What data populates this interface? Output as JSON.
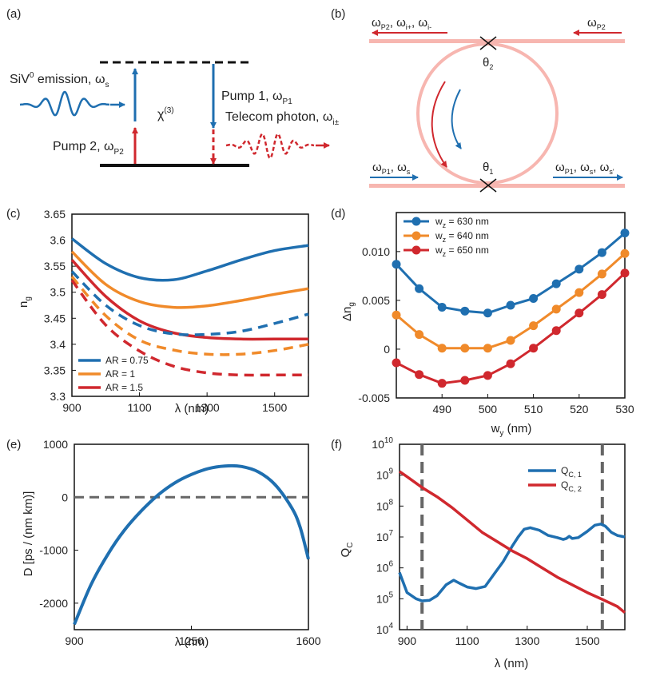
{
  "colors": {
    "blue": "#1f6fb0",
    "orange": "#f08a2a",
    "red": "#d0282e",
    "pink": "#f7b6b0",
    "black": "#111111",
    "grey": "#666666"
  },
  "panel_a": {
    "label": "(a)",
    "siv_emission": "SiV",
    "siv_sup": "0",
    "siv_rest": " emission, ω",
    "siv_sub": "s",
    "chi": "χ",
    "chi_sup": "(3)",
    "pump1": "Pump 1, ω",
    "pump1_sub": "P1",
    "telecom": "Telecom photon, ω",
    "telecom_sub": "i±",
    "pump2": "Pump 2, ω",
    "pump2_sub": "P2"
  },
  "panel_b": {
    "label": "(b)",
    "out_top_left": "ω",
    "out_top_left_sub": "P2",
    "out_top_left_2": ", ω",
    "out_top_left_2_sub": "i+",
    "out_top_left_3": ", ω",
    "out_top_left_3_sub": "i-",
    "in_top_right": "ω",
    "in_top_right_sub": "P2",
    "theta2": "θ",
    "theta2_sub": "2",
    "theta1": "θ",
    "theta1_sub": "1",
    "in_bottom_left": "ω",
    "in_bottom_left_sub": "P1",
    "in_bottom_left_2": ", ω",
    "in_bottom_left_2_sub": "s",
    "out_bottom_right": "ω",
    "out_bottom_right_sub": "P1",
    "out_bottom_right_2": ", ω",
    "out_bottom_right_2_sub": "s",
    "out_bottom_right_3": ", ω",
    "out_bottom_right_3_sub": "s'"
  },
  "chart_data": [
    {
      "id": "c",
      "label": "(c)",
      "type": "line",
      "xlabel": "λ (nm)",
      "ylabel": "n",
      "ylabel_sub": "g",
      "xlim": [
        900,
        1600
      ],
      "ylim": [
        3.3,
        3.65
      ],
      "xticks": [
        900,
        1100,
        1300,
        1500
      ],
      "yticks": [
        3.3,
        3.35,
        3.4,
        3.45,
        3.5,
        3.55,
        3.6,
        3.65
      ],
      "ytick_labels": [
        "3.3",
        "3.35",
        "3.4",
        "3.45",
        "3.5",
        "3.55",
        "3.6",
        "3.65"
      ],
      "legend": [
        "AR = 0.75",
        "AR = 1",
        "AR = 1.5"
      ],
      "legend_position": "bottom-left",
      "x": [
        900,
        1000,
        1100,
        1200,
        1300,
        1400,
        1500,
        1600
      ],
      "series": [
        {
          "name": "AR = 0.75 solid",
          "color": "blue",
          "dash": false,
          "values": [
            3.603,
            3.555,
            3.528,
            3.524,
            3.541,
            3.562,
            3.58,
            3.59
          ]
        },
        {
          "name": "AR = 1 solid",
          "color": "orange",
          "dash": false,
          "values": [
            3.578,
            3.515,
            3.482,
            3.471,
            3.474,
            3.484,
            3.496,
            3.507
          ]
        },
        {
          "name": "AR = 1.5 solid",
          "color": "red",
          "dash": false,
          "values": [
            3.562,
            3.492,
            3.445,
            3.422,
            3.413,
            3.41,
            3.41,
            3.41
          ]
        },
        {
          "name": "AR = 0.75 dashed",
          "color": "blue",
          "dash": true,
          "values": [
            3.54,
            3.475,
            3.436,
            3.42,
            3.419,
            3.425,
            3.44,
            3.458
          ]
        },
        {
          "name": "AR = 1 dashed",
          "color": "orange",
          "dash": true,
          "values": [
            3.53,
            3.455,
            3.408,
            3.389,
            3.381,
            3.381,
            3.388,
            3.4
          ]
        },
        {
          "name": "AR = 1.5 dashed",
          "color": "red",
          "dash": true,
          "values": [
            3.523,
            3.437,
            3.387,
            3.358,
            3.345,
            3.341,
            3.341,
            3.341
          ]
        }
      ]
    },
    {
      "id": "d",
      "label": "(d)",
      "type": "line",
      "xlabel": "w",
      "xlabel_sub": "y",
      "xlabel_rest": " (nm)",
      "ylabel": "Δn",
      "ylabel_sub": "g",
      "xlim": [
        480,
        530
      ],
      "ylim": [
        -0.005,
        0.014
      ],
      "xticks": [
        490,
        500,
        510,
        520,
        530
      ],
      "yticks": [
        -0.005,
        0,
        0.005,
        0.01
      ],
      "ytick_labels": [
        "-0.005",
        "0",
        "0.005",
        "0.010"
      ],
      "legend": [
        "w_z = 630 nm",
        "w_z = 640 nm",
        "w_z = 650 nm"
      ],
      "legend_labels": [
        {
          "a": "w",
          "sub": "z",
          "b": " = 630 nm"
        },
        {
          "a": "w",
          "sub": "z",
          "b": " = 640 nm"
        },
        {
          "a": "w",
          "sub": "z",
          "b": " = 650 nm"
        }
      ],
      "legend_position": "top-left",
      "x": [
        480,
        485,
        490,
        495,
        500,
        505,
        510,
        515,
        520,
        525,
        530
      ],
      "series": [
        {
          "name": "w_z = 630 nm",
          "color": "blue",
          "values": [
            0.0087,
            0.0062,
            0.0043,
            0.0039,
            0.0037,
            0.0045,
            0.0052,
            0.0067,
            0.0082,
            0.0099,
            0.0119
          ]
        },
        {
          "name": "w_z = 640 nm",
          "color": "orange",
          "values": [
            0.0035,
            0.0015,
            0.0001,
            0.0001,
            0.0001,
            0.0009,
            0.0024,
            0.0041,
            0.0058,
            0.0077,
            0.0098
          ]
        },
        {
          "name": "w_z = 650 nm",
          "color": "red",
          "values": [
            -0.0014,
            -0.0026,
            -0.0035,
            -0.0032,
            -0.0027,
            -0.0015,
            0.0001,
            0.0019,
            0.0037,
            0.0056,
            0.0078
          ]
        }
      ]
    },
    {
      "id": "e",
      "label": "(e)",
      "type": "line",
      "xlabel": "λ (nm)",
      "ylabel": "D [ps / (nm km)]",
      "xlim": [
        900,
        1600
      ],
      "ylim": [
        -2500,
        1000
      ],
      "xticks": [
        900,
        1250,
        1600
      ],
      "yticks": [
        -2000,
        -1000,
        0,
        1000
      ],
      "ytick_labels": [
        "-2000",
        "-1000",
        "0",
        "1000"
      ],
      "zero_line": true,
      "x": [
        900,
        950,
        1000,
        1050,
        1100,
        1150,
        1200,
        1250,
        1300,
        1350,
        1400,
        1450,
        1500,
        1550,
        1575,
        1600
      ],
      "series": [
        {
          "name": "D",
          "color": "blue",
          "values": [
            -2400,
            -1650,
            -1080,
            -620,
            -260,
            40,
            270,
            430,
            540,
            590,
            580,
            480,
            240,
            -200,
            -560,
            -1170
          ]
        }
      ]
    },
    {
      "id": "f",
      "label": "(f)",
      "type": "line",
      "yscale": "log",
      "xlabel": "λ (nm)",
      "ylabel": "Q",
      "ylabel_sub": "C",
      "xlim": [
        875,
        1625
      ],
      "ylim": [
        10000,
        10000000000
      ],
      "xticks": [
        900,
        1100,
        1300,
        1500
      ],
      "yticks": [
        4,
        5,
        6,
        7,
        8,
        9,
        10
      ],
      "vlines": [
        950,
        1550
      ],
      "legend": [
        "Q_C, 1",
        "Q_C, 2"
      ],
      "legend_labels": [
        {
          "a": "Q",
          "sub": "C, 1"
        },
        {
          "a": "Q",
          "sub": "C, 2"
        }
      ],
      "legend_position": "top-right",
      "series": [
        {
          "name": "Q_C, 1",
          "color": "blue",
          "x": [
            875,
            900,
            930,
            950,
            975,
            1000,
            1030,
            1055,
            1075,
            1100,
            1130,
            1160,
            1190,
            1220,
            1250,
            1270,
            1290,
            1310,
            1340,
            1370,
            1400,
            1420,
            1430,
            1440,
            1450,
            1470,
            1500,
            1525,
            1545,
            1560,
            1580,
            1600,
            1625
          ],
          "log_values": [
            5.85,
            5.2,
            5.0,
            4.93,
            4.95,
            5.1,
            5.45,
            5.6,
            5.5,
            5.38,
            5.33,
            5.4,
            5.8,
            6.2,
            6.7,
            7.0,
            7.25,
            7.3,
            7.22,
            7.05,
            6.98,
            6.92,
            6.95,
            7.02,
            6.95,
            6.98,
            7.18,
            7.38,
            7.42,
            7.35,
            7.15,
            7.05,
            7.0
          ]
        },
        {
          "name": "Q_C, 2",
          "color": "red",
          "x": [
            875,
            900,
            950,
            1000,
            1050,
            1100,
            1150,
            1200,
            1250,
            1300,
            1350,
            1400,
            1450,
            1500,
            1550,
            1600,
            1625
          ],
          "log_values": [
            9.12,
            8.95,
            8.6,
            8.3,
            7.95,
            7.55,
            7.15,
            6.85,
            6.55,
            6.3,
            6.0,
            5.7,
            5.45,
            5.2,
            4.98,
            4.75,
            4.55
          ]
        }
      ]
    }
  ]
}
